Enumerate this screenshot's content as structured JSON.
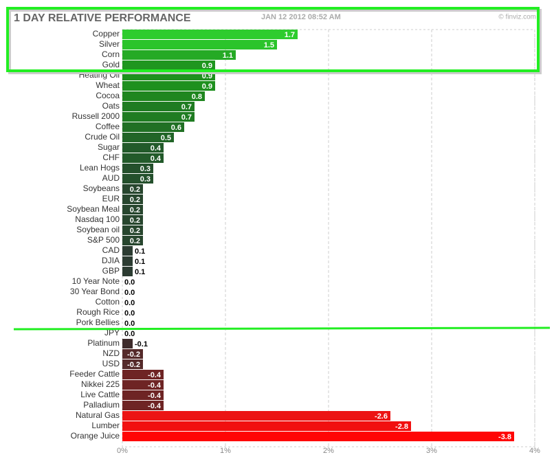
{
  "chart_data": {
    "type": "bar",
    "orientation": "horizontal",
    "title": "1 DAY RELATIVE PERFORMANCE",
    "subtitle": "JAN 12 2012 08:52 AM",
    "source": "© finviz.com",
    "categories": [
      "Copper",
      "Silver",
      "Corn",
      "Gold",
      "Heating Oil",
      "Wheat",
      "Cocoa",
      "Oats",
      "Russell 2000",
      "Coffee",
      "Crude Oil",
      "Sugar",
      "CHF",
      "Lean Hogs",
      "AUD",
      "Soybeans",
      "EUR",
      "Soybean Meal",
      "Nasdaq 100",
      "Soybean oil",
      "S&P 500",
      "CAD",
      "DJIA",
      "GBP",
      "10 Year Note",
      "30 Year Bond",
      "Cotton",
      "Rough Rice",
      "Pork Bellies",
      "JPY",
      "Platinum",
      "NZD",
      "USD",
      "Feeder Cattle",
      "Nikkei 225",
      "Live Cattle",
      "Palladium",
      "Natural Gas",
      "Lumber",
      "Orange Juice"
    ],
    "values": [
      1.7,
      1.5,
      1.1,
      0.9,
      0.9,
      0.9,
      0.8,
      0.7,
      0.7,
      0.6,
      0.5,
      0.4,
      0.4,
      0.3,
      0.3,
      0.2,
      0.2,
      0.2,
      0.2,
      0.2,
      0.2,
      0.1,
      0.1,
      0.1,
      0.0,
      0.0,
      0.0,
      0.0,
      0.0,
      0.0,
      -0.1,
      -0.2,
      -0.2,
      -0.4,
      -0.4,
      -0.4,
      -0.4,
      -2.6,
      -2.8,
      -3.8
    ],
    "value_labels": [
      "1.7",
      "1.5",
      "1.1",
      "0.9",
      "0.9",
      "0.9",
      "0.8",
      "0.7",
      "0.7",
      "0.6",
      "0.5",
      "0.4",
      "0.4",
      "0.3",
      "0.3",
      "0.2",
      "0.2",
      "0.2",
      "0.2",
      "0.2",
      "0.2",
      "0.1",
      "0.1",
      "0.1",
      "0.0",
      "0.0",
      "0.0",
      "0.0",
      "0.0",
      "0.0",
      "-0.1",
      "-0.2",
      "-0.2",
      "-0.4",
      "-0.4",
      "-0.4",
      "-0.4",
      "-2.6",
      "-2.8",
      "-3.8"
    ],
    "colors": [
      "#2ecc2e",
      "#2bc42b",
      "#25aa25",
      "#1f961f",
      "#1e901e",
      "#1e901e",
      "#1f861f",
      "#1f7c22",
      "#1f7c22",
      "#207024",
      "#216527",
      "#225a2a",
      "#225a2a",
      "#24502c",
      "#24502c",
      "#27462e",
      "#27462e",
      "#27462e",
      "#27462e",
      "#27462e",
      "#27462e",
      "#2c3c32",
      "#2c3c32",
      "#2c3c32",
      "#333333",
      "#333333",
      "#333333",
      "#333333",
      "#333333",
      "#333333",
      "#3e2c2c",
      "#552a2a",
      "#552a2a",
      "#6e2424",
      "#6e2424",
      "#6e2424",
      "#6e2424",
      "#ec1414",
      "#f11010",
      "#ff0606"
    ],
    "xlim": [
      0,
      4
    ],
    "xticks": [
      {
        "value": 0,
        "label": "0%"
      },
      {
        "value": 1,
        "label": "1%"
      },
      {
        "value": 2,
        "label": "2%"
      },
      {
        "value": 3,
        "label": "3%"
      },
      {
        "value": 4,
        "label": "4%"
      }
    ],
    "grid": true
  }
}
